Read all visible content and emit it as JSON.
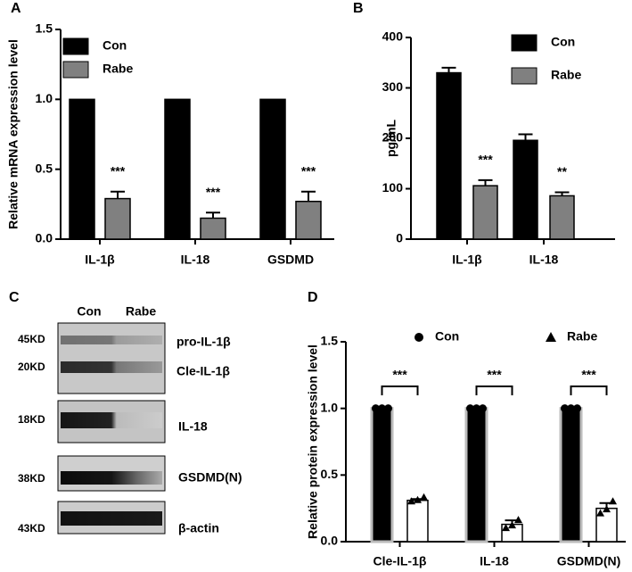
{
  "chart_data": [
    {
      "type": "bar",
      "label": "A",
      "ylabel": "Relative mRNA expression level",
      "categories": [
        "IL-1β",
        "IL-18",
        "GSDMD"
      ],
      "series": [
        {
          "name": "Con",
          "color": "#000000",
          "values": [
            1,
            1,
            1
          ]
        },
        {
          "name": "Rabe",
          "color": "#808080",
          "values": [
            0.29,
            0.15,
            0.27
          ],
          "errors": [
            0.05,
            0.04,
            0.07
          ]
        }
      ],
      "annotations": [
        "***",
        "***",
        "***"
      ],
      "ylim": [
        0,
        1.5
      ],
      "yticks": [
        {
          "value": 0,
          "label": "0.0"
        },
        0.5,
        {
          "value": 1,
          "label": "1.0"
        },
        1.5
      ]
    },
    {
      "type": "bar",
      "label": "B",
      "ylabel": "pg/mL",
      "categories": [
        "IL-1β",
        "IL-18"
      ],
      "series": [
        {
          "name": "Con",
          "color": "#000000",
          "values": [
            330,
            196
          ],
          "errors": [
            10,
            12
          ]
        },
        {
          "name": "Rabe",
          "color": "#808080",
          "values": [
            106,
            86
          ],
          "errors": [
            11,
            7
          ]
        }
      ],
      "annotations": [
        "***",
        "**"
      ],
      "ylim": [
        0,
        400
      ],
      "yticks": [
        0,
        100,
        200,
        300,
        400
      ]
    },
    {
      "type": "bar",
      "label": "D",
      "ylabel": "Relative protein expression level",
      "categories": [
        "Cle-IL-1β",
        "IL-18",
        "GSDMD(N)"
      ],
      "series": [
        {
          "name": "Con",
          "color": "#000000",
          "marker": "circle",
          "values": [
            1,
            1,
            1
          ],
          "points": [
            [
              1,
              1,
              1
            ],
            [
              1,
              1,
              1
            ],
            [
              1,
              1,
              1
            ]
          ]
        },
        {
          "name": "Rabe",
          "color": "#ffffff",
          "marker": "triangle",
          "values": [
            0.31,
            0.13,
            0.25
          ],
          "errors": [
            0.01,
            0.03,
            0.04
          ],
          "points": [
            [
              0.3,
              0.31,
              0.33
            ],
            [
              0.1,
              0.12,
              0.16
            ],
            [
              0.21,
              0.24,
              0.3
            ]
          ]
        }
      ],
      "annotations": [
        "***",
        "***",
        "***"
      ],
      "significance_brackets": true,
      "ylim": [
        0,
        1.5
      ],
      "yticks": [
        {
          "value": 0,
          "label": "0.0"
        },
        0.5,
        {
          "value": 1,
          "label": "1.0"
        },
        1.5
      ]
    }
  ],
  "blot": {
    "label": "C",
    "columns": [
      "Con",
      "Rabe"
    ],
    "rows": [
      {
        "size": "45KD",
        "name": "pro-IL-1β"
      },
      {
        "size": "20KD",
        "name": "Cle-IL-1β"
      },
      {
        "size": "18KD",
        "name": "IL-18"
      },
      {
        "size": "38KD",
        "name": "GSDMD(N)"
      },
      {
        "size": "43KD",
        "name": "β-actin"
      }
    ]
  }
}
